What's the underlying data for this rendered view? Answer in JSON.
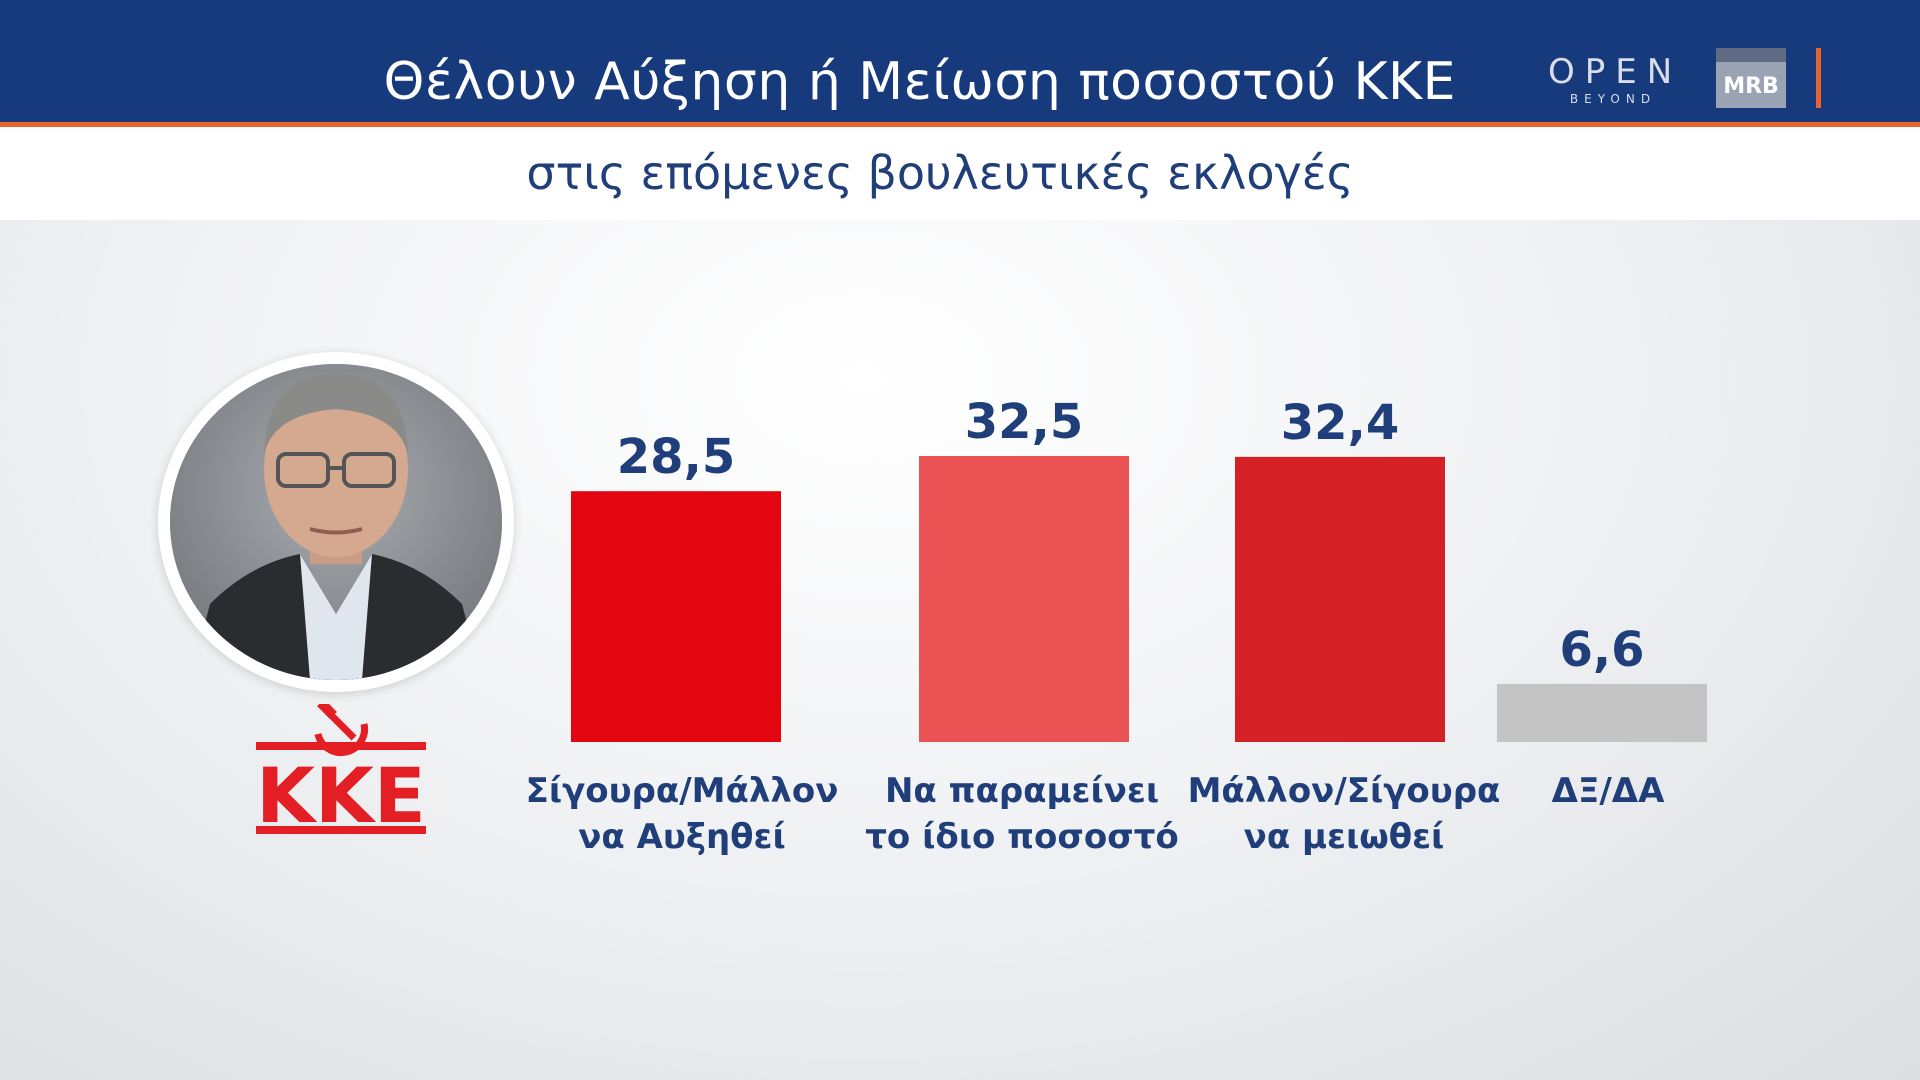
{
  "header": {
    "title": "Θέλουν Αύξηση ή Μείωση ποσοστού ΚΚΕ",
    "subtitle": "στις επόμενες βουλευτικές εκλογές",
    "logo_open": "OPEN",
    "logo_open_sub": "BEYOND",
    "logo_mrb": "MRB"
  },
  "party_logo_text": "KKE",
  "colors": {
    "header_bg": "#173a7c",
    "accent": "#e8642c",
    "text_blue": "#1f3e7a"
  },
  "chart_data": {
    "type": "bar",
    "title": "Θέλουν Αύξηση ή Μείωση ποσοστού ΚΚΕ",
    "subtitle": "στις επόμενες βουλευτικές εκλογές",
    "categories": [
      [
        "Σίγουρα/Μάλλον",
        "να Αυξηθεί"
      ],
      [
        "Να παραμείνει",
        "το ίδιο ποσοστό"
      ],
      [
        "Μάλλον/Σίγουρα",
        "να μειωθεί"
      ],
      [
        "ΔΞ/ΔΑ"
      ]
    ],
    "values": [
      28.5,
      32.5,
      32.4,
      6.6
    ],
    "value_labels": [
      "28,5",
      "32,5",
      "32,4",
      "6,6"
    ],
    "bar_colors": [
      "#e30611",
      "#eb5254",
      "#d52125",
      "#c4c4c4"
    ],
    "ylim": [
      0,
      40
    ],
    "grid": false,
    "legend": "none"
  }
}
